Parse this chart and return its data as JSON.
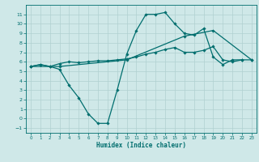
{
  "title": "",
  "xlabel": "Humidex (Indice chaleur)",
  "xlim": [
    -0.5,
    23.5
  ],
  "ylim": [
    -1.5,
    12.0
  ],
  "yticks": [
    -1,
    0,
    1,
    2,
    3,
    4,
    5,
    6,
    7,
    8,
    9,
    10,
    11
  ],
  "xticks": [
    0,
    1,
    2,
    3,
    4,
    5,
    6,
    7,
    8,
    9,
    10,
    11,
    12,
    13,
    14,
    15,
    16,
    17,
    18,
    19,
    20,
    21,
    22,
    23
  ],
  "bg_color": "#cfe8e8",
  "grid_color": "#b0d0d0",
  "line_color": "#006e6e",
  "line_width": 0.9,
  "marker": "D",
  "marker_size": 1.8,
  "lines": [
    {
      "x": [
        0,
        1,
        2,
        3,
        4,
        5,
        6,
        7,
        8,
        9,
        10,
        11,
        12,
        13,
        14,
        15,
        16,
        17,
        18,
        19,
        20,
        21,
        22,
        23
      ],
      "y": [
        5.5,
        5.7,
        5.5,
        5.8,
        6.0,
        5.9,
        6.0,
        6.1,
        6.1,
        6.2,
        6.3,
        6.5,
        6.8,
        7.0,
        7.3,
        7.5,
        7.0,
        7.0,
        7.2,
        7.6,
        6.2,
        6.0,
        6.2,
        6.2
      ]
    },
    {
      "x": [
        0,
        1,
        2,
        3,
        4,
        5,
        6,
        7,
        8,
        9,
        10,
        11,
        12,
        13,
        14,
        15,
        16,
        17,
        18,
        19,
        20,
        21,
        22
      ],
      "y": [
        5.5,
        5.7,
        5.5,
        5.2,
        3.5,
        2.2,
        0.5,
        -0.5,
        -0.5,
        3.0,
        6.8,
        9.3,
        11.0,
        11.0,
        11.2,
        10.0,
        9.0,
        8.8,
        9.5,
        6.5,
        5.7,
        6.2,
        6.2
      ]
    },
    {
      "x": [
        0,
        3,
        10,
        16,
        19,
        23
      ],
      "y": [
        5.5,
        5.5,
        6.2,
        8.7,
        9.3,
        6.2
      ]
    }
  ]
}
